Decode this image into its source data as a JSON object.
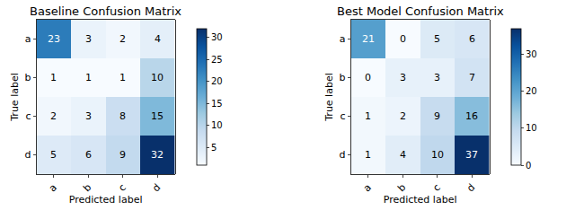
{
  "chart_data": [
    {
      "type": "heatmap",
      "title": "Baseline Confusion Matrix",
      "x_label": "Predicted label",
      "y_label": "True label",
      "x_categories": [
        "a",
        "b",
        "c",
        "d"
      ],
      "y_categories": [
        "a",
        "b",
        "c",
        "d"
      ],
      "cells": [
        [
          23,
          3,
          2,
          4
        ],
        [
          1,
          1,
          1,
          10
        ],
        [
          2,
          3,
          8,
          15
        ],
        [
          5,
          6,
          9,
          32
        ]
      ],
      "data_labels": true,
      "color_range": [
        1,
        32
      ],
      "color_ticks": [
        5,
        10,
        15,
        20,
        25,
        30
      ]
    },
    {
      "type": "heatmap",
      "title": "Best Model Confusion Matrix",
      "x_label": "Predicted label",
      "y_label": "True label",
      "x_categories": [
        "a",
        "b",
        "c",
        "d"
      ],
      "y_categories": [
        "a",
        "b",
        "c",
        "d"
      ],
      "cells": [
        [
          21,
          0,
          5,
          6
        ],
        [
          0,
          3,
          3,
          7
        ],
        [
          1,
          2,
          9,
          16
        ],
        [
          1,
          4,
          10,
          37
        ]
      ],
      "data_labels": true,
      "color_range": [
        0,
        37
      ],
      "color_ticks": [
        0,
        10,
        20,
        30
      ]
    }
  ]
}
